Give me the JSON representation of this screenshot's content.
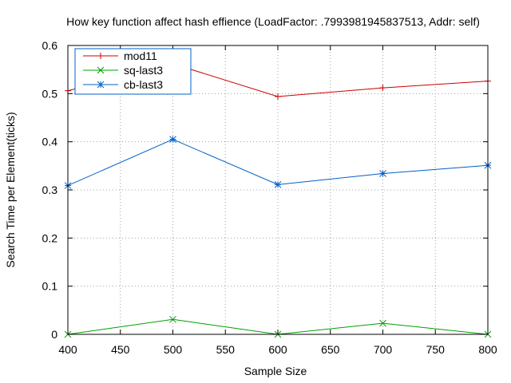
{
  "chart_data": {
    "type": "line",
    "title": "How key function affect hash effience (LoadFactor: .7993981945837513, Addr: self)",
    "xlabel": "Sample Size",
    "ylabel": "Search Time per Element(ticks)",
    "xlim": [
      400,
      800
    ],
    "ylim": [
      0,
      0.6
    ],
    "xticks": [
      "400",
      "450",
      "500",
      "550",
      "600",
      "650",
      "700",
      "750",
      "800"
    ],
    "yticks": [
      "0",
      "0.1",
      "0.2",
      "0.3",
      "0.4",
      "0.5",
      "0.6"
    ],
    "grid": true,
    "legend_position": "top-left",
    "x": [
      400,
      500,
      600,
      700,
      800
    ],
    "series": [
      {
        "name": "mod11",
        "color": "#cc0000",
        "marker": "plus",
        "values": [
          0.506,
          0.562,
          0.494,
          0.512,
          0.526
        ]
      },
      {
        "name": "sq-last3",
        "color": "#00a000",
        "marker": "cross",
        "values": [
          0.0,
          0.031,
          0.0,
          0.023,
          0.0
        ]
      },
      {
        "name": "cb-last3",
        "color": "#0060c8",
        "marker": "star",
        "values": [
          0.309,
          0.405,
          0.311,
          0.334,
          0.351
        ]
      }
    ]
  }
}
